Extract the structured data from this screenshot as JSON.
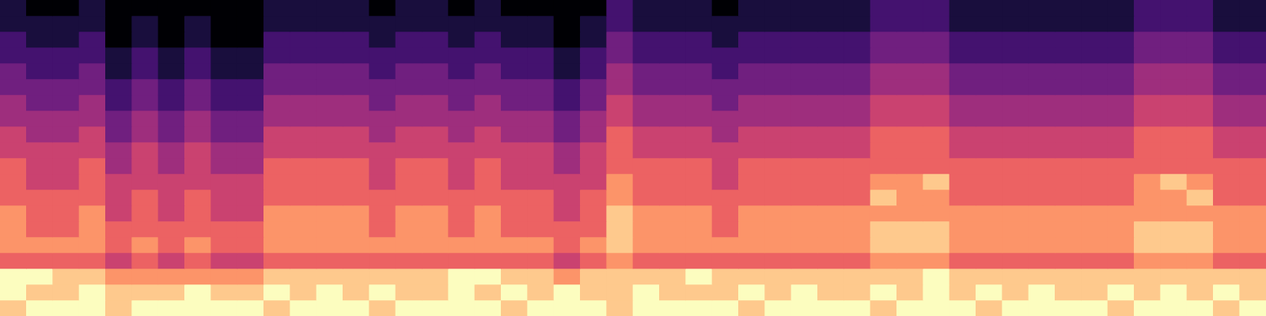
{
  "chart_data": {
    "type": "heatmap",
    "tick_labels": false,
    "grid": false,
    "color_range": [
      0,
      9
    ],
    "cells": [
      [
        1,
        0,
        0,
        1,
        0,
        0,
        0,
        0,
        0,
        0,
        1,
        1,
        1,
        1,
        0,
        1,
        1,
        0,
        1,
        0,
        0,
        0,
        0,
        2,
        1,
        1,
        1,
        0,
        1,
        1,
        1,
        1,
        1,
        2,
        2,
        2,
        1,
        1,
        1,
        1,
        1,
        1,
        1,
        2,
        2,
        2,
        1,
        1
      ],
      [
        1,
        1,
        1,
        1,
        0,
        1,
        0,
        1,
        0,
        0,
        1,
        1,
        1,
        1,
        1,
        1,
        1,
        1,
        1,
        1,
        1,
        0,
        1,
        2,
        1,
        1,
        1,
        1,
        1,
        1,
        1,
        1,
        1,
        2,
        2,
        2,
        1,
        1,
        1,
        1,
        1,
        1,
        1,
        2,
        2,
        2,
        1,
        1
      ],
      [
        2,
        1,
        1,
        2,
        0,
        1,
        0,
        1,
        0,
        0,
        2,
        2,
        2,
        2,
        1,
        2,
        2,
        1,
        2,
        1,
        1,
        0,
        1,
        3,
        2,
        2,
        2,
        1,
        2,
        2,
        2,
        2,
        2,
        3,
        3,
        3,
        2,
        2,
        2,
        2,
        2,
        2,
        2,
        3,
        3,
        3,
        2,
        2
      ],
      [
        2,
        2,
        2,
        2,
        1,
        2,
        1,
        2,
        1,
        1,
        2,
        2,
        2,
        2,
        2,
        2,
        2,
        2,
        2,
        2,
        2,
        1,
        2,
        3,
        2,
        2,
        2,
        2,
        2,
        2,
        2,
        2,
        2,
        3,
        3,
        3,
        2,
        2,
        2,
        2,
        2,
        2,
        2,
        3,
        3,
        3,
        2,
        2
      ],
      [
        3,
        2,
        2,
        3,
        1,
        2,
        1,
        2,
        1,
        1,
        3,
        3,
        3,
        3,
        2,
        3,
        3,
        2,
        3,
        2,
        2,
        1,
        2,
        4,
        3,
        3,
        3,
        2,
        3,
        3,
        3,
        3,
        3,
        4,
        4,
        4,
        3,
        3,
        3,
        3,
        3,
        3,
        3,
        4,
        4,
        4,
        3,
        3
      ],
      [
        3,
        3,
        3,
        3,
        2,
        3,
        2,
        3,
        2,
        2,
        3,
        3,
        3,
        3,
        3,
        3,
        3,
        3,
        3,
        3,
        3,
        2,
        3,
        4,
        3,
        3,
        3,
        3,
        3,
        3,
        3,
        3,
        3,
        4,
        4,
        4,
        3,
        3,
        3,
        3,
        3,
        3,
        3,
        4,
        4,
        4,
        3,
        3
      ],
      [
        4,
        3,
        3,
        4,
        2,
        3,
        2,
        3,
        2,
        2,
        4,
        4,
        4,
        4,
        3,
        4,
        4,
        3,
        4,
        3,
        3,
        2,
        3,
        5,
        4,
        4,
        4,
        3,
        4,
        4,
        4,
        4,
        4,
        5,
        5,
        5,
        4,
        4,
        4,
        4,
        4,
        4,
        4,
        5,
        5,
        5,
        4,
        4
      ],
      [
        4,
        4,
        4,
        4,
        3,
        4,
        3,
        4,
        3,
        3,
        4,
        4,
        4,
        4,
        4,
        4,
        4,
        4,
        4,
        4,
        4,
        3,
        4,
        5,
        4,
        4,
        4,
        4,
        4,
        4,
        4,
        4,
        4,
        5,
        5,
        5,
        4,
        4,
        4,
        4,
        4,
        4,
        4,
        5,
        5,
        5,
        4,
        4
      ],
      [
        5,
        4,
        4,
        5,
        3,
        4,
        3,
        4,
        3,
        3,
        5,
        5,
        5,
        5,
        4,
        5,
        5,
        4,
        5,
        4,
        4,
        3,
        4,
        6,
        5,
        5,
        5,
        4,
        5,
        5,
        5,
        5,
        5,
        6,
        6,
        6,
        5,
        5,
        5,
        5,
        5,
        5,
        5,
        6,
        6,
        6,
        5,
        5
      ],
      [
        5,
        5,
        5,
        5,
        4,
        5,
        4,
        5,
        4,
        4,
        5,
        5,
        5,
        5,
        5,
        5,
        5,
        5,
        5,
        5,
        5,
        4,
        5,
        6,
        5,
        5,
        5,
        5,
        5,
        5,
        5,
        5,
        5,
        6,
        6,
        6,
        5,
        5,
        5,
        5,
        5,
        5,
        5,
        6,
        6,
        6,
        5,
        5
      ],
      [
        6,
        5,
        5,
        6,
        4,
        5,
        4,
        5,
        4,
        4,
        6,
        6,
        6,
        6,
        5,
        6,
        6,
        5,
        6,
        5,
        5,
        4,
        5,
        6,
        6,
        6,
        6,
        5,
        6,
        6,
        6,
        6,
        6,
        6,
        6,
        6,
        6,
        6,
        6,
        6,
        6,
        6,
        6,
        6,
        6,
        6,
        6,
        6
      ],
      [
        6,
        5,
        5,
        6,
        5,
        5,
        5,
        5,
        5,
        5,
        6,
        6,
        6,
        6,
        5,
        6,
        6,
        5,
        6,
        5,
        5,
        5,
        5,
        7,
        6,
        6,
        6,
        5,
        6,
        6,
        6,
        6,
        6,
        7,
        7,
        8,
        6,
        6,
        6,
        6,
        6,
        6,
        6,
        7,
        8,
        7,
        6,
        6
      ],
      [
        6,
        6,
        6,
        6,
        5,
        6,
        5,
        6,
        5,
        5,
        6,
        6,
        6,
        6,
        6,
        6,
        6,
        6,
        6,
        6,
        6,
        5,
        6,
        7,
        6,
        6,
        6,
        6,
        6,
        6,
        6,
        6,
        6,
        8,
        7,
        7,
        6,
        6,
        6,
        6,
        6,
        6,
        6,
        7,
        7,
        8,
        6,
        6
      ],
      [
        7,
        6,
        6,
        7,
        5,
        6,
        5,
        6,
        5,
        5,
        7,
        7,
        7,
        7,
        6,
        7,
        7,
        6,
        7,
        6,
        6,
        5,
        6,
        8,
        7,
        7,
        7,
        6,
        7,
        7,
        7,
        7,
        7,
        7,
        7,
        7,
        7,
        7,
        7,
        7,
        7,
        7,
        7,
        7,
        7,
        7,
        7,
        7
      ],
      [
        7,
        6,
        6,
        7,
        6,
        6,
        6,
        6,
        6,
        6,
        7,
        7,
        7,
        7,
        6,
        7,
        7,
        6,
        7,
        6,
        6,
        6,
        6,
        8,
        7,
        7,
        7,
        6,
        7,
        7,
        7,
        7,
        7,
        8,
        8,
        8,
        7,
        7,
        7,
        7,
        7,
        7,
        7,
        8,
        8,
        8,
        7,
        7
      ],
      [
        7,
        7,
        7,
        7,
        6,
        7,
        6,
        7,
        6,
        6,
        7,
        7,
        7,
        7,
        7,
        7,
        7,
        7,
        7,
        7,
        7,
        6,
        7,
        8,
        7,
        7,
        7,
        7,
        7,
        7,
        7,
        7,
        7,
        8,
        8,
        8,
        7,
        7,
        7,
        7,
        7,
        7,
        7,
        8,
        8,
        8,
        7,
        7
      ],
      [
        6,
        6,
        6,
        6,
        5,
        6,
        5,
        6,
        5,
        5,
        6,
        6,
        6,
        6,
        6,
        6,
        6,
        6,
        6,
        6,
        6,
        5,
        6,
        7,
        6,
        6,
        6,
        6,
        6,
        6,
        6,
        6,
        6,
        7,
        7,
        7,
        6,
        6,
        6,
        6,
        6,
        6,
        6,
        7,
        7,
        7,
        6,
        6
      ],
      [
        9,
        9,
        8,
        8,
        7,
        7,
        7,
        7,
        7,
        7,
        8,
        8,
        8,
        8,
        8,
        8,
        8,
        9,
        9,
        8,
        8,
        7,
        8,
        8,
        8,
        8,
        9,
        8,
        8,
        8,
        8,
        8,
        8,
        8,
        8,
        9,
        8,
        8,
        8,
        8,
        8,
        8,
        8,
        8,
        8,
        8,
        8,
        8
      ],
      [
        9,
        8,
        8,
        9,
        8,
        8,
        8,
        9,
        8,
        8,
        9,
        8,
        9,
        8,
        9,
        8,
        8,
        9,
        8,
        9,
        8,
        9,
        8,
        8,
        9,
        8,
        8,
        8,
        9,
        8,
        9,
        8,
        8,
        9,
        8,
        9,
        8,
        9,
        8,
        9,
        8,
        8,
        9,
        8,
        9,
        8,
        9,
        8
      ],
      [
        8,
        9,
        9,
        9,
        8,
        9,
        9,
        9,
        9,
        9,
        8,
        9,
        9,
        9,
        8,
        9,
        9,
        9,
        9,
        8,
        9,
        9,
        9,
        8,
        9,
        9,
        9,
        9,
        8,
        9,
        9,
        9,
        9,
        8,
        9,
        9,
        9,
        8,
        9,
        9,
        9,
        9,
        8,
        9,
        9,
        9,
        8,
        9
      ]
    ]
  }
}
